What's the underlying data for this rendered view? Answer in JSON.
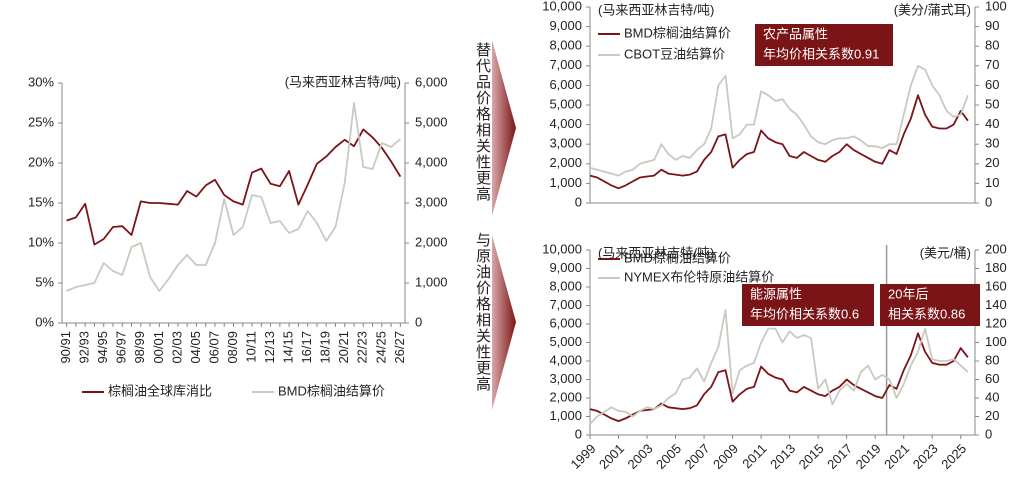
{
  "chart_data": [
    {
      "type": "line",
      "categories": [
        "90/91",
        null,
        "92/93",
        null,
        "94/95",
        null,
        "96/97",
        null,
        "98/99",
        null,
        "00/01",
        null,
        "02/03",
        null,
        "04/05",
        null,
        "06/07",
        null,
        "08/09",
        null,
        "10/11",
        null,
        "12/13",
        null,
        "14/15",
        null,
        "16/17",
        null,
        "18/19",
        null,
        "20/21",
        null,
        "22/23",
        null,
        "24/25",
        null,
        "26/27"
      ],
      "y2label": "(马来西亚林吉特/吨)",
      "ylim": [
        0,
        30
      ],
      "yticks": [
        {
          "value": 0,
          "label": "0%"
        },
        {
          "value": 5,
          "label": "5%"
        },
        {
          "value": 10,
          "label": "10%"
        },
        {
          "value": 15,
          "label": "15%"
        },
        {
          "value": 20,
          "label": "20%"
        },
        {
          "value": 25,
          "label": "25%"
        },
        {
          "value": 30,
          "label": "30%"
        }
      ],
      "y2lim": [
        0,
        6000
      ],
      "y2ticks": [
        0,
        {
          "value": 1000,
          "label": "1,000"
        },
        {
          "value": 2000,
          "label": "2,000"
        },
        {
          "value": 3000,
          "label": "3,000"
        },
        {
          "value": 4000,
          "label": "4,000"
        },
        {
          "value": 5000,
          "label": "5,000"
        },
        {
          "value": 6000,
          "label": "6,000"
        }
      ],
      "legend": "bottom",
      "series": [
        {
          "name": "棕榈油全球库消比",
          "color": "#7b1416",
          "values": [
            12.8,
            13.2,
            14.9,
            9.8,
            10.5,
            12.0,
            12.1,
            11.0,
            15.2,
            15.0,
            15.0,
            14.9,
            14.8,
            16.5,
            15.8,
            17.2,
            17.9,
            16.0,
            15.2,
            14.8,
            18.8,
            19.3,
            17.4,
            17.1,
            19.0,
            14.8,
            17.3,
            19.9,
            20.8,
            22.0,
            22.9,
            22.1,
            24.2,
            23.2,
            21.9,
            20.2,
            18.3
          ]
        },
        {
          "name": "BMD棕榈油结算价",
          "color": "#c9c9c1",
          "axis": "y2",
          "values": [
            800,
            900,
            950,
            1000,
            1500,
            1300,
            1200,
            1900,
            2000,
            1150,
            800,
            1100,
            1450,
            1700,
            1450,
            1450,
            2000,
            3100,
            2200,
            2400,
            3200,
            3150,
            2500,
            2550,
            2250,
            2350,
            2800,
            2500,
            2050,
            2400,
            3500,
            5500,
            3900,
            3850,
            4500,
            4400,
            4600
          ]
        }
      ]
    },
    {
      "type": "line",
      "side_label": "替代品价格相关性更高",
      "x": [
        1999,
        1999.5,
        2000,
        2000.5,
        2001,
        2001.5,
        2002,
        2002.5,
        2003,
        2003.5,
        2004,
        2004.5,
        2005,
        2005.5,
        2006,
        2006.5,
        2007,
        2007.5,
        2008,
        2008.5,
        2009,
        2009.5,
        2010,
        2010.5,
        2011,
        2011.5,
        2012,
        2012.5,
        2013,
        2013.5,
        2014,
        2014.5,
        2015,
        2015.5,
        2016,
        2016.5,
        2017,
        2017.5,
        2018,
        2018.5,
        2019,
        2019.5,
        2020,
        2020.5,
        2021,
        2021.5,
        2022,
        2022.5,
        2023,
        2023.5,
        2024,
        2024.5,
        2025,
        2025.5
      ],
      "xlim": [
        1999,
        2026
      ],
      "ylabel": "(马来西亚林吉特/吨)",
      "y2label": "(美分/蒲式耳)",
      "ylim": [
        0,
        10000
      ],
      "yticks": [
        0,
        {
          "value": 1000,
          "label": "1,000"
        },
        {
          "value": 2000,
          "label": "2,000"
        },
        {
          "value": 3000,
          "label": "3,000"
        },
        {
          "value": 4000,
          "label": "4,000"
        },
        {
          "value": 5000,
          "label": "5,000"
        },
        {
          "value": 6000,
          "label": "6,000"
        },
        {
          "value": 7000,
          "label": "7,000"
        },
        {
          "value": 8000,
          "label": "8,000"
        },
        {
          "value": 9000,
          "label": "9,000"
        },
        {
          "value": 10000,
          "label": "10,000"
        }
      ],
      "y2lim": [
        0,
        100
      ],
      "y2ticks": [
        0,
        10,
        20,
        30,
        40,
        50,
        60,
        70,
        80,
        90,
        100
      ],
      "legend": "upper left",
      "annotations": [
        [
          "农产品属性",
          "年均价相关系数0.91"
        ]
      ],
      "series": [
        {
          "name": "BMD棕榈油结算价",
          "color": "#7b1416",
          "values": [
            1400,
            1300,
            1100,
            900,
            750,
            900,
            1100,
            1300,
            1350,
            1400,
            1700,
            1500,
            1450,
            1400,
            1450,
            1600,
            2200,
            2600,
            3400,
            3500,
            1800,
            2200,
            2500,
            2600,
            3700,
            3300,
            3100,
            3000,
            2400,
            2300,
            2600,
            2400,
            2200,
            2100,
            2400,
            2600,
            3000,
            2700,
            2500,
            2300,
            2100,
            2000,
            2700,
            2500,
            3500,
            4300,
            5500,
            4500,
            3900,
            3800,
            3800,
            4000,
            4700,
            4200
          ]
        },
        {
          "name": "CBOT豆油结算价",
          "color": "#c9c9c1",
          "axis": "y2",
          "values": [
            18,
            17,
            16,
            15,
            14,
            16,
            17,
            20,
            21,
            22,
            30,
            25,
            22,
            24,
            23,
            27,
            30,
            38,
            60,
            65,
            33,
            35,
            40,
            40,
            57,
            55,
            52,
            53,
            48,
            45,
            40,
            34,
            31,
            30,
            32,
            33,
            33,
            34,
            32,
            29,
            29,
            28,
            30,
            30,
            45,
            60,
            70,
            68,
            60,
            55,
            47,
            44,
            45,
            55
          ]
        }
      ]
    },
    {
      "type": "line",
      "side_label": "与原油价格相关性更高",
      "x": [
        1999,
        1999.5,
        2000,
        2000.5,
        2001,
        2001.5,
        2002,
        2002.5,
        2003,
        2003.5,
        2004,
        2004.5,
        2005,
        2005.5,
        2006,
        2006.5,
        2007,
        2007.5,
        2008,
        2008.5,
        2009,
        2009.5,
        2010,
        2010.5,
        2011,
        2011.5,
        2012,
        2012.5,
        2013,
        2013.5,
        2014,
        2014.5,
        2015,
        2015.5,
        2016,
        2016.5,
        2017,
        2017.5,
        2018,
        2018.5,
        2019,
        2019.5,
        2020,
        2020.5,
        2021,
        2021.5,
        2022,
        2022.5,
        2023,
        2023.5,
        2024,
        2024.5,
        2025,
        2025.5
      ],
      "xlim": [
        1999,
        2026
      ],
      "xticks": [
        1999,
        2001,
        2003,
        2005,
        2007,
        2009,
        2011,
        2013,
        2015,
        2017,
        2019,
        2021,
        2023,
        2025
      ],
      "vline": 2019.8,
      "ylabel": "(马来西亚林吉特/吨)",
      "y2label": "(美元/桶)",
      "ylim": [
        0,
        10000
      ],
      "yticks": [
        0,
        {
          "value": 1000,
          "label": "1,000"
        },
        {
          "value": 2000,
          "label": "2,000"
        },
        {
          "value": 3000,
          "label": "3,000"
        },
        {
          "value": 4000,
          "label": "4,000"
        },
        {
          "value": 5000,
          "label": "5,000"
        },
        {
          "value": 6000,
          "label": "6,000"
        },
        {
          "value": 7000,
          "label": "7,000"
        },
        {
          "value": 8000,
          "label": "8,000"
        },
        {
          "value": 9000,
          "label": "9,000"
        },
        {
          "value": 10000,
          "label": "10,000"
        }
      ],
      "y2lim": [
        0,
        200
      ],
      "y2ticks": [
        0,
        20,
        40,
        60,
        80,
        100,
        120,
        140,
        160,
        180,
        200
      ],
      "legend": "upper left",
      "annotations": [
        [
          "能源属性",
          "年均价相关系数0.6"
        ],
        [
          "20年后",
          "相关系数0.86"
        ]
      ],
      "series": [
        {
          "name": "BMD棕榈油结算价",
          "color": "#7b1416",
          "values": [
            1400,
            1300,
            1100,
            900,
            750,
            900,
            1100,
            1300,
            1350,
            1400,
            1700,
            1500,
            1450,
            1400,
            1450,
            1600,
            2200,
            2600,
            3400,
            3500,
            1800,
            2200,
            2500,
            2600,
            3700,
            3300,
            3100,
            3000,
            2400,
            2300,
            2600,
            2400,
            2200,
            2100,
            2400,
            2600,
            3000,
            2700,
            2500,
            2300,
            2100,
            2000,
            2700,
            2500,
            3500,
            4300,
            5500,
            4500,
            3900,
            3800,
            3800,
            4000,
            4700,
            4200
          ]
        },
        {
          "name": "NYMEX布伦特原油结算价",
          "color": "#c9c9c1",
          "axis": "y2",
          "values": [
            12,
            20,
            25,
            30,
            26,
            25,
            20,
            26,
            30,
            28,
            32,
            40,
            45,
            60,
            62,
            72,
            58,
            78,
            95,
            135,
            45,
            70,
            75,
            78,
            100,
            115,
            115,
            100,
            112,
            105,
            108,
            105,
            50,
            60,
            33,
            48,
            55,
            48,
            68,
            75,
            60,
            65,
            60,
            40,
            55,
            75,
            90,
            115,
            82,
            80,
            80,
            82,
            75,
            68
          ]
        }
      ]
    }
  ]
}
